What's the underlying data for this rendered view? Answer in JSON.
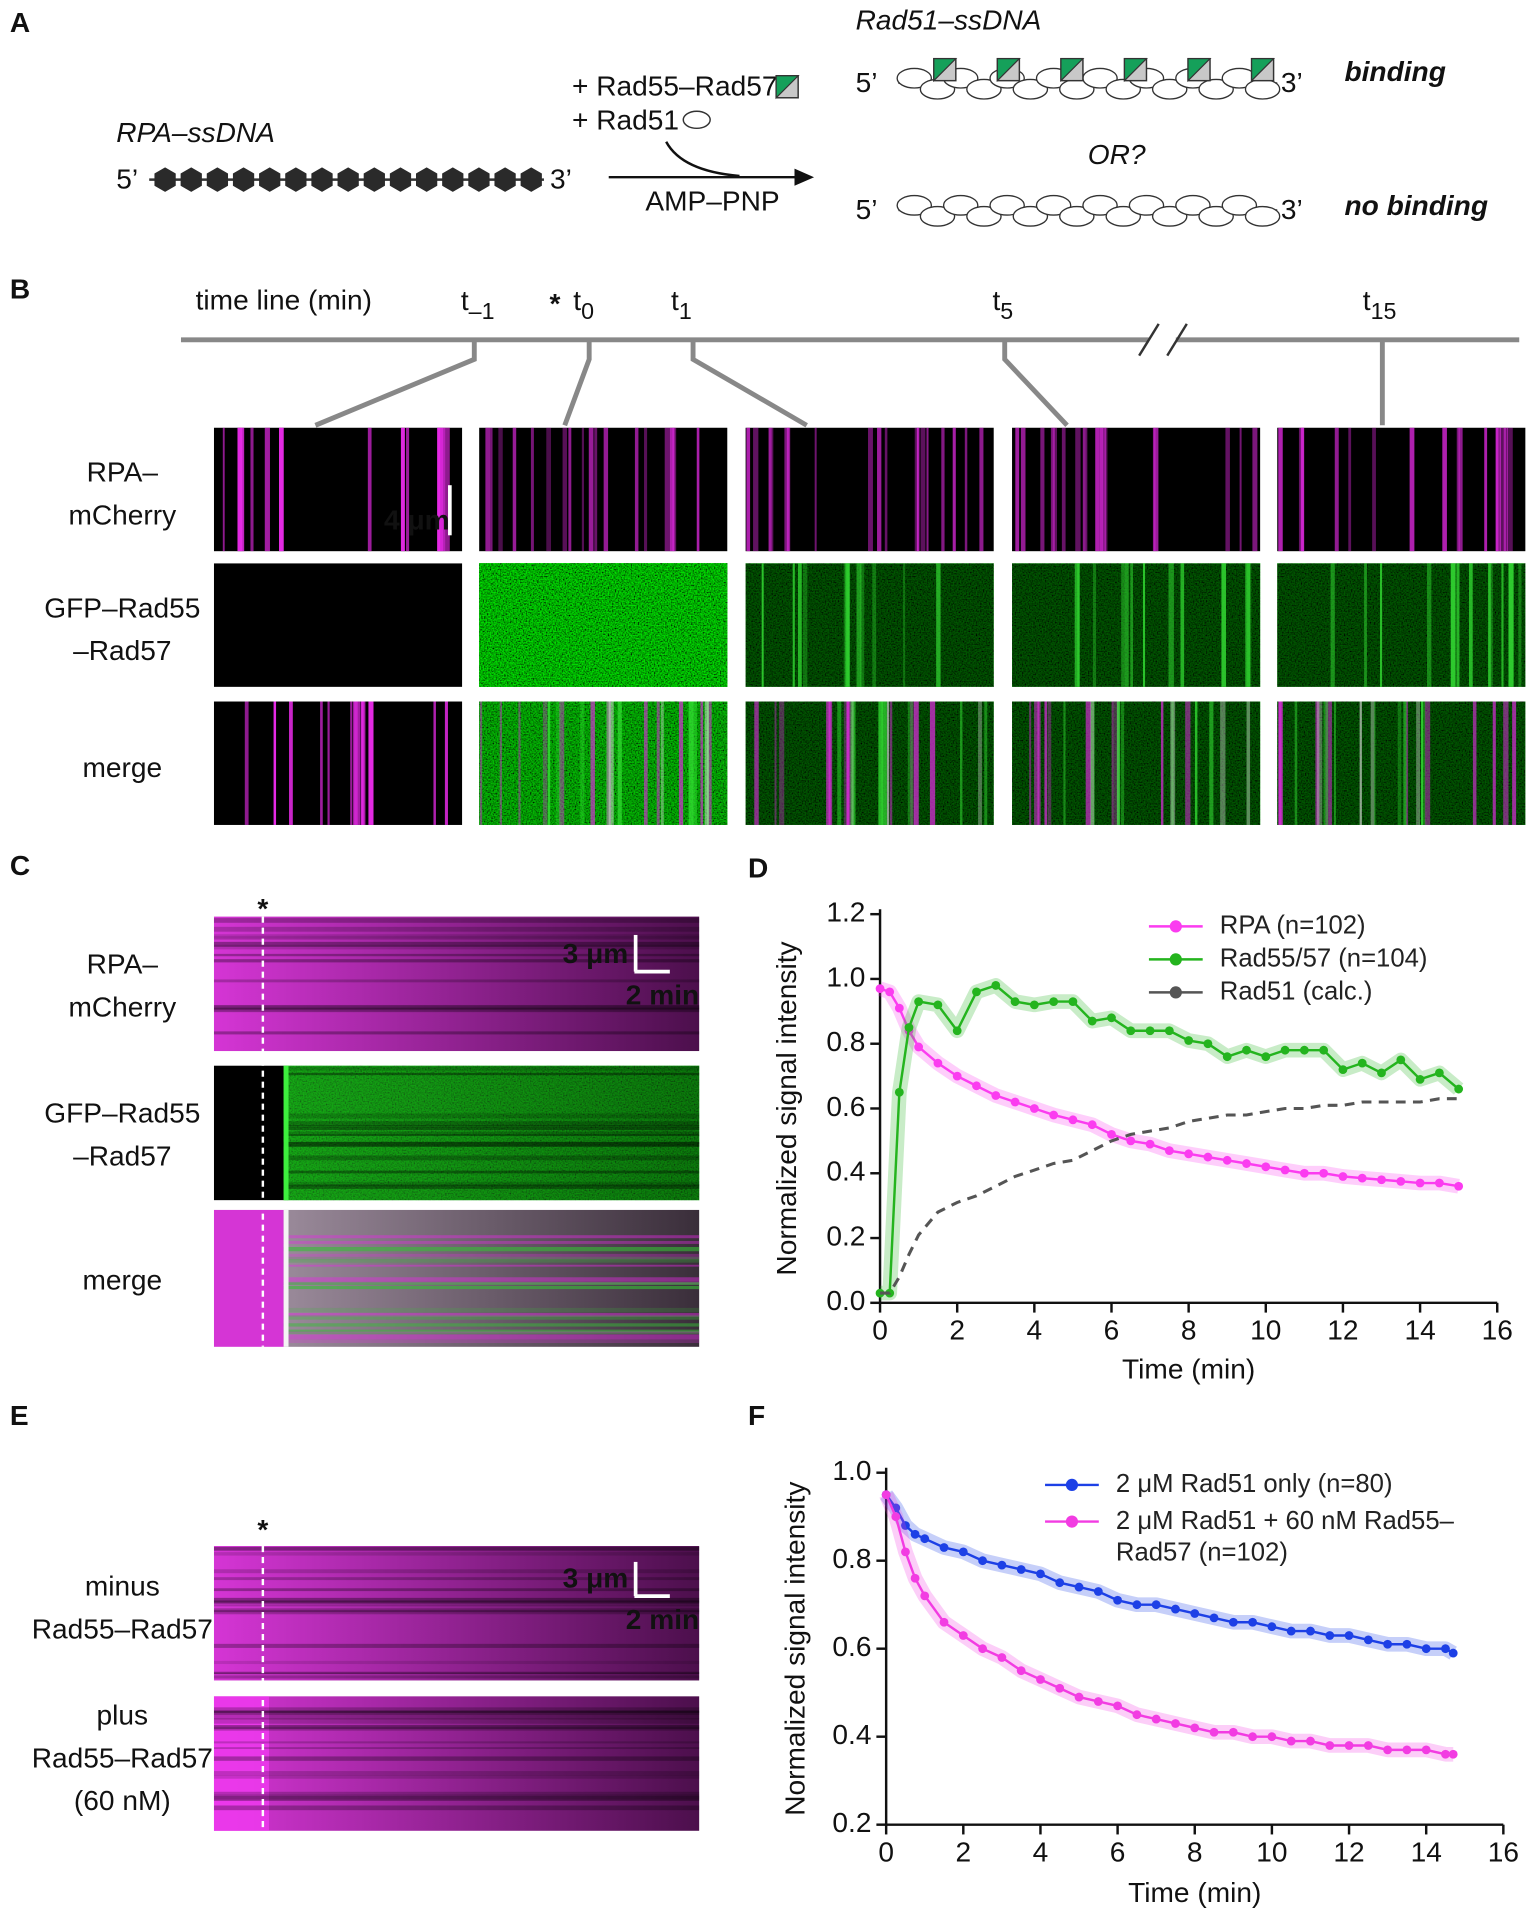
{
  "panel_a": {
    "label": "A",
    "rpa_ssdna": "RPA–ssDNA",
    "five_prime": "5’",
    "three_prime": "3’",
    "plus_rad55_rad57": "+ Rad55–Rad57",
    "plus_rad51": "+ Rad51",
    "amp_pnp": "AMP–PNP",
    "rad51_ssdna": "Rad51–ssDNA",
    "binding": "binding",
    "or": "OR?",
    "no_binding": "no binding"
  },
  "panel_b": {
    "label": "B",
    "timeline_label": "time line (min)",
    "asterisk": "*",
    "timepoints": [
      {
        "base": "t",
        "sub": "–1"
      },
      {
        "base": "t",
        "sub": "0"
      },
      {
        "base": "t",
        "sub": "1"
      },
      {
        "base": "t",
        "sub": "5"
      },
      {
        "base": "t",
        "sub": "15"
      }
    ],
    "rows": [
      [
        "RPA–",
        "mCherry"
      ],
      [
        "GFP–Rad55",
        "–Rad57"
      ],
      [
        "merge"
      ]
    ],
    "scale_bar": "4 μm"
  },
  "panel_c": {
    "label": "C",
    "asterisk": "*",
    "rows": [
      [
        "RPA–",
        "mCherry"
      ],
      [
        "GFP–Rad55",
        "–Rad57"
      ],
      [
        "merge"
      ]
    ],
    "scale_bar_length": "3 μm",
    "scale_bar_time": "2 min"
  },
  "panel_e": {
    "label": "E",
    "asterisk": "*",
    "rows": [
      [
        "minus",
        "Rad55–Rad57"
      ],
      [
        "plus",
        "Rad55–Rad57",
        "(60 nM)"
      ]
    ],
    "scale_bar_length": "3 μm",
    "scale_bar_time": "2 min"
  },
  "chart_data": [
    {
      "type": "line",
      "panel_label": "D",
      "x_label": "Time (min)",
      "y_label": "Normalized signal intensity",
      "x": [
        0,
        0.25,
        0.5,
        0.75,
        1,
        1.5,
        2,
        2.5,
        3,
        3.5,
        4,
        4.5,
        5,
        5.5,
        6,
        6.5,
        7,
        7.5,
        8,
        8.5,
        9,
        9.5,
        10,
        10.5,
        11,
        11.5,
        12,
        12.5,
        13,
        13.5,
        14,
        14.5,
        15
      ],
      "series": [
        {
          "name": "RPA (n=102)",
          "color": "#fb3cf0",
          "values": [
            0.97,
            0.96,
            0.91,
            0.84,
            0.79,
            0.74,
            0.7,
            0.67,
            0.64,
            0.62,
            0.6,
            0.58,
            0.565,
            0.55,
            0.52,
            0.5,
            0.49,
            0.47,
            0.46,
            0.45,
            0.44,
            0.43,
            0.42,
            0.41,
            0.4,
            0.4,
            0.39,
            0.385,
            0.38,
            0.375,
            0.37,
            0.37,
            0.36
          ]
        },
        {
          "name": "Rad55/57 (n=104)",
          "color": "#24b41e",
          "values": [
            0.03,
            0.03,
            0.65,
            0.85,
            0.93,
            0.92,
            0.84,
            0.96,
            0.98,
            0.93,
            0.92,
            0.93,
            0.93,
            0.87,
            0.88,
            0.84,
            0.84,
            0.84,
            0.81,
            0.8,
            0.76,
            0.78,
            0.76,
            0.78,
            0.78,
            0.78,
            0.72,
            0.74,
            0.71,
            0.75,
            0.69,
            0.71,
            0.66
          ]
        },
        {
          "name": "Rad51 (calc.)",
          "color": "#555555",
          "line_style": "dashed",
          "markers": false,
          "values": [
            0.03,
            0.03,
            0.08,
            0.15,
            0.21,
            0.28,
            0.31,
            0.33,
            0.36,
            0.39,
            0.41,
            0.43,
            0.44,
            0.47,
            0.5,
            0.52,
            0.53,
            0.54,
            0.56,
            0.57,
            0.58,
            0.58,
            0.59,
            0.6,
            0.6,
            0.61,
            0.61,
            0.62,
            0.62,
            0.62,
            0.62,
            0.63,
            0.63
          ]
        }
      ],
      "xlim": [
        0,
        16
      ],
      "xticks": [
        0,
        2,
        4,
        6,
        8,
        10,
        12,
        14,
        16
      ],
      "ylim": [
        0,
        1.2
      ],
      "yticks": [
        {
          "value": 0,
          "label": "0.0"
        },
        0.2,
        0.4,
        0.6,
        0.8,
        {
          "value": 1,
          "label": "1.0"
        },
        1.2
      ],
      "grid": false,
      "legend": "upper right"
    },
    {
      "type": "line",
      "panel_label": "F",
      "x_label": "Time (min)",
      "y_label": "Normalized signal intensity",
      "x": [
        0,
        0.25,
        0.5,
        0.75,
        1,
        1.5,
        2,
        2.5,
        3,
        3.5,
        4,
        4.5,
        5,
        5.5,
        6,
        6.5,
        7,
        7.5,
        8,
        8.5,
        9,
        9.5,
        10,
        10.5,
        11,
        11.5,
        12,
        12.5,
        13,
        13.5,
        14,
        14.5,
        14.7
      ],
      "series": [
        {
          "name": "2 μM Rad51 only (n=80)",
          "color": "#1d40e6",
          "values": [
            0.95,
            0.92,
            0.88,
            0.86,
            0.85,
            0.83,
            0.82,
            0.8,
            0.79,
            0.78,
            0.77,
            0.75,
            0.74,
            0.73,
            0.71,
            0.7,
            0.7,
            0.69,
            0.68,
            0.67,
            0.66,
            0.66,
            0.65,
            0.64,
            0.64,
            0.63,
            0.63,
            0.62,
            0.61,
            0.61,
            0.6,
            0.6,
            0.59
          ]
        },
        {
          "name": "2 μM Rad51 + 60 nM Rad55–Rad57 (n=102)",
          "color": "#f23ce2",
          "values": [
            0.95,
            0.9,
            0.82,
            0.76,
            0.72,
            0.66,
            0.63,
            0.6,
            0.58,
            0.55,
            0.53,
            0.51,
            0.49,
            0.48,
            0.47,
            0.45,
            0.44,
            0.43,
            0.42,
            0.41,
            0.41,
            0.4,
            0.4,
            0.39,
            0.39,
            0.38,
            0.38,
            0.38,
            0.37,
            0.37,
            0.37,
            0.36,
            0.36
          ]
        }
      ],
      "xlim": [
        0,
        16
      ],
      "xticks": [
        0,
        2,
        4,
        6,
        8,
        10,
        12,
        14,
        16
      ],
      "ylim": [
        0.2,
        1.0
      ],
      "yticks": [
        0.2,
        0.4,
        0.6,
        0.8,
        {
          "value": 1,
          "label": "1.0"
        }
      ],
      "grid": false,
      "legend": "upper right"
    }
  ]
}
